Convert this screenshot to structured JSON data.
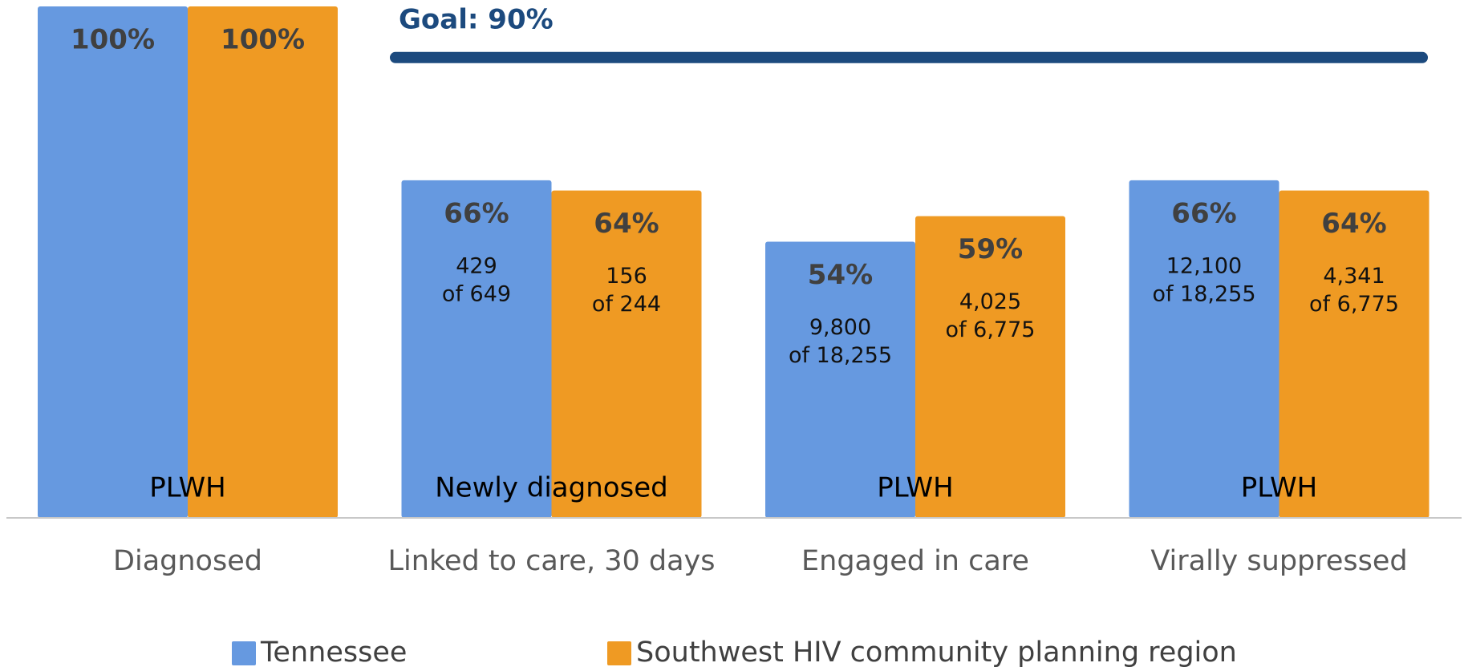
{
  "chart_data": {
    "type": "bar",
    "categories": [
      "Diagnosed",
      "Linked to care, 30 days",
      "Engaged in care",
      "Virally suppressed"
    ],
    "group_labels": [
      "PLWH",
      "Newly diagnosed",
      "PLWH",
      "PLWH"
    ],
    "series": [
      {
        "name": "Tennessee",
        "color": "#6699e0",
        "values": [
          100,
          66,
          54,
          66
        ],
        "value_labels": [
          "100%",
          "66%",
          "54%",
          "66%"
        ],
        "count_labels": [
          null,
          [
            "429",
            "of 649"
          ],
          [
            "9,800",
            "of 18,255"
          ],
          [
            "12,100",
            "of 18,255"
          ]
        ]
      },
      {
        "name": "Southwest HIV community planning region",
        "color": "#ef9a23",
        "values": [
          100,
          64,
          59,
          64
        ],
        "value_labels": [
          "100%",
          "64%",
          "59%",
          "64%"
        ],
        "count_labels": [
          null,
          [
            "156",
            "of 244"
          ],
          [
            "4,025",
            "of 6,775"
          ],
          [
            "4,341",
            "of 6,775"
          ]
        ]
      }
    ],
    "goal": {
      "value": 90,
      "label": "Goal: 90%",
      "color": "#1c4a7e"
    },
    "ylim": [
      0,
      100
    ],
    "legend": "bottom"
  }
}
